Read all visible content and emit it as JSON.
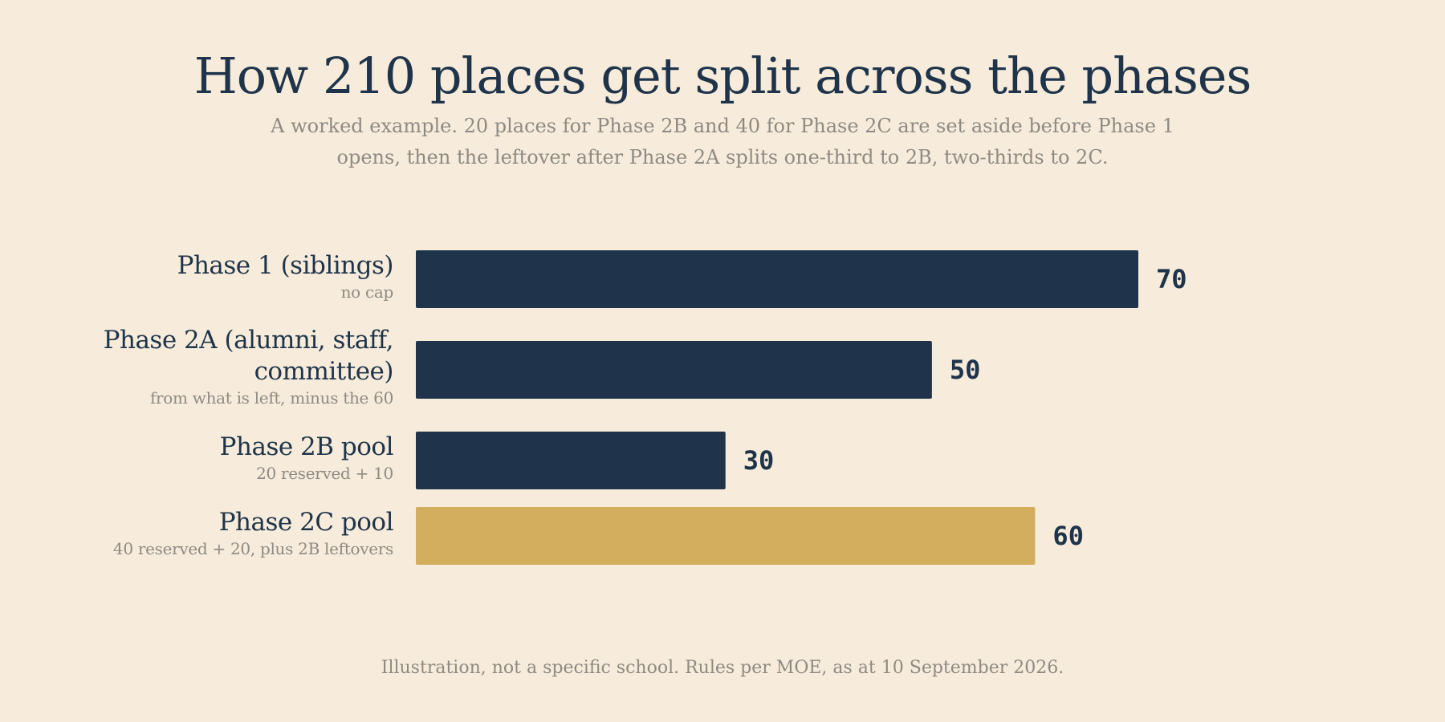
{
  "title": "How 210 places get split across the phases",
  "subtitle": "A worked example. 20 places for Phase 2B and 40 for Phase 2C are set aside before Phase 1 opens, then the leftover after Phase 2A splits one-third to 2B, two-thirds to 2C.",
  "footnote": "Illustration, not a specific school. Rules per MOE, as at 10 September 2026.",
  "colors": {
    "background": "#f7ecdb",
    "primary": "#1f344a",
    "highlight": "#d4ae5f",
    "muted": "#8e8a83"
  },
  "chart_data": {
    "type": "bar",
    "orientation": "horizontal",
    "title": "How 210 places get split across the phases",
    "categories": [
      "Phase 1 (siblings)",
      "Phase 2A (alumni, staff, committee)",
      "Phase 2B pool",
      "Phase 2C pool"
    ],
    "category_notes": [
      "no cap",
      "from what is left, minus the 60",
      "20 reserved + 10",
      "40 reserved + 20, plus 2B leftovers"
    ],
    "values": [
      70,
      50,
      30,
      60
    ],
    "value_labels": [
      "70",
      "50",
      "30",
      "60"
    ],
    "highlighted": [
      false,
      false,
      false,
      true
    ],
    "xlim": [
      0,
      70
    ],
    "grid": false,
    "legend": "none"
  }
}
